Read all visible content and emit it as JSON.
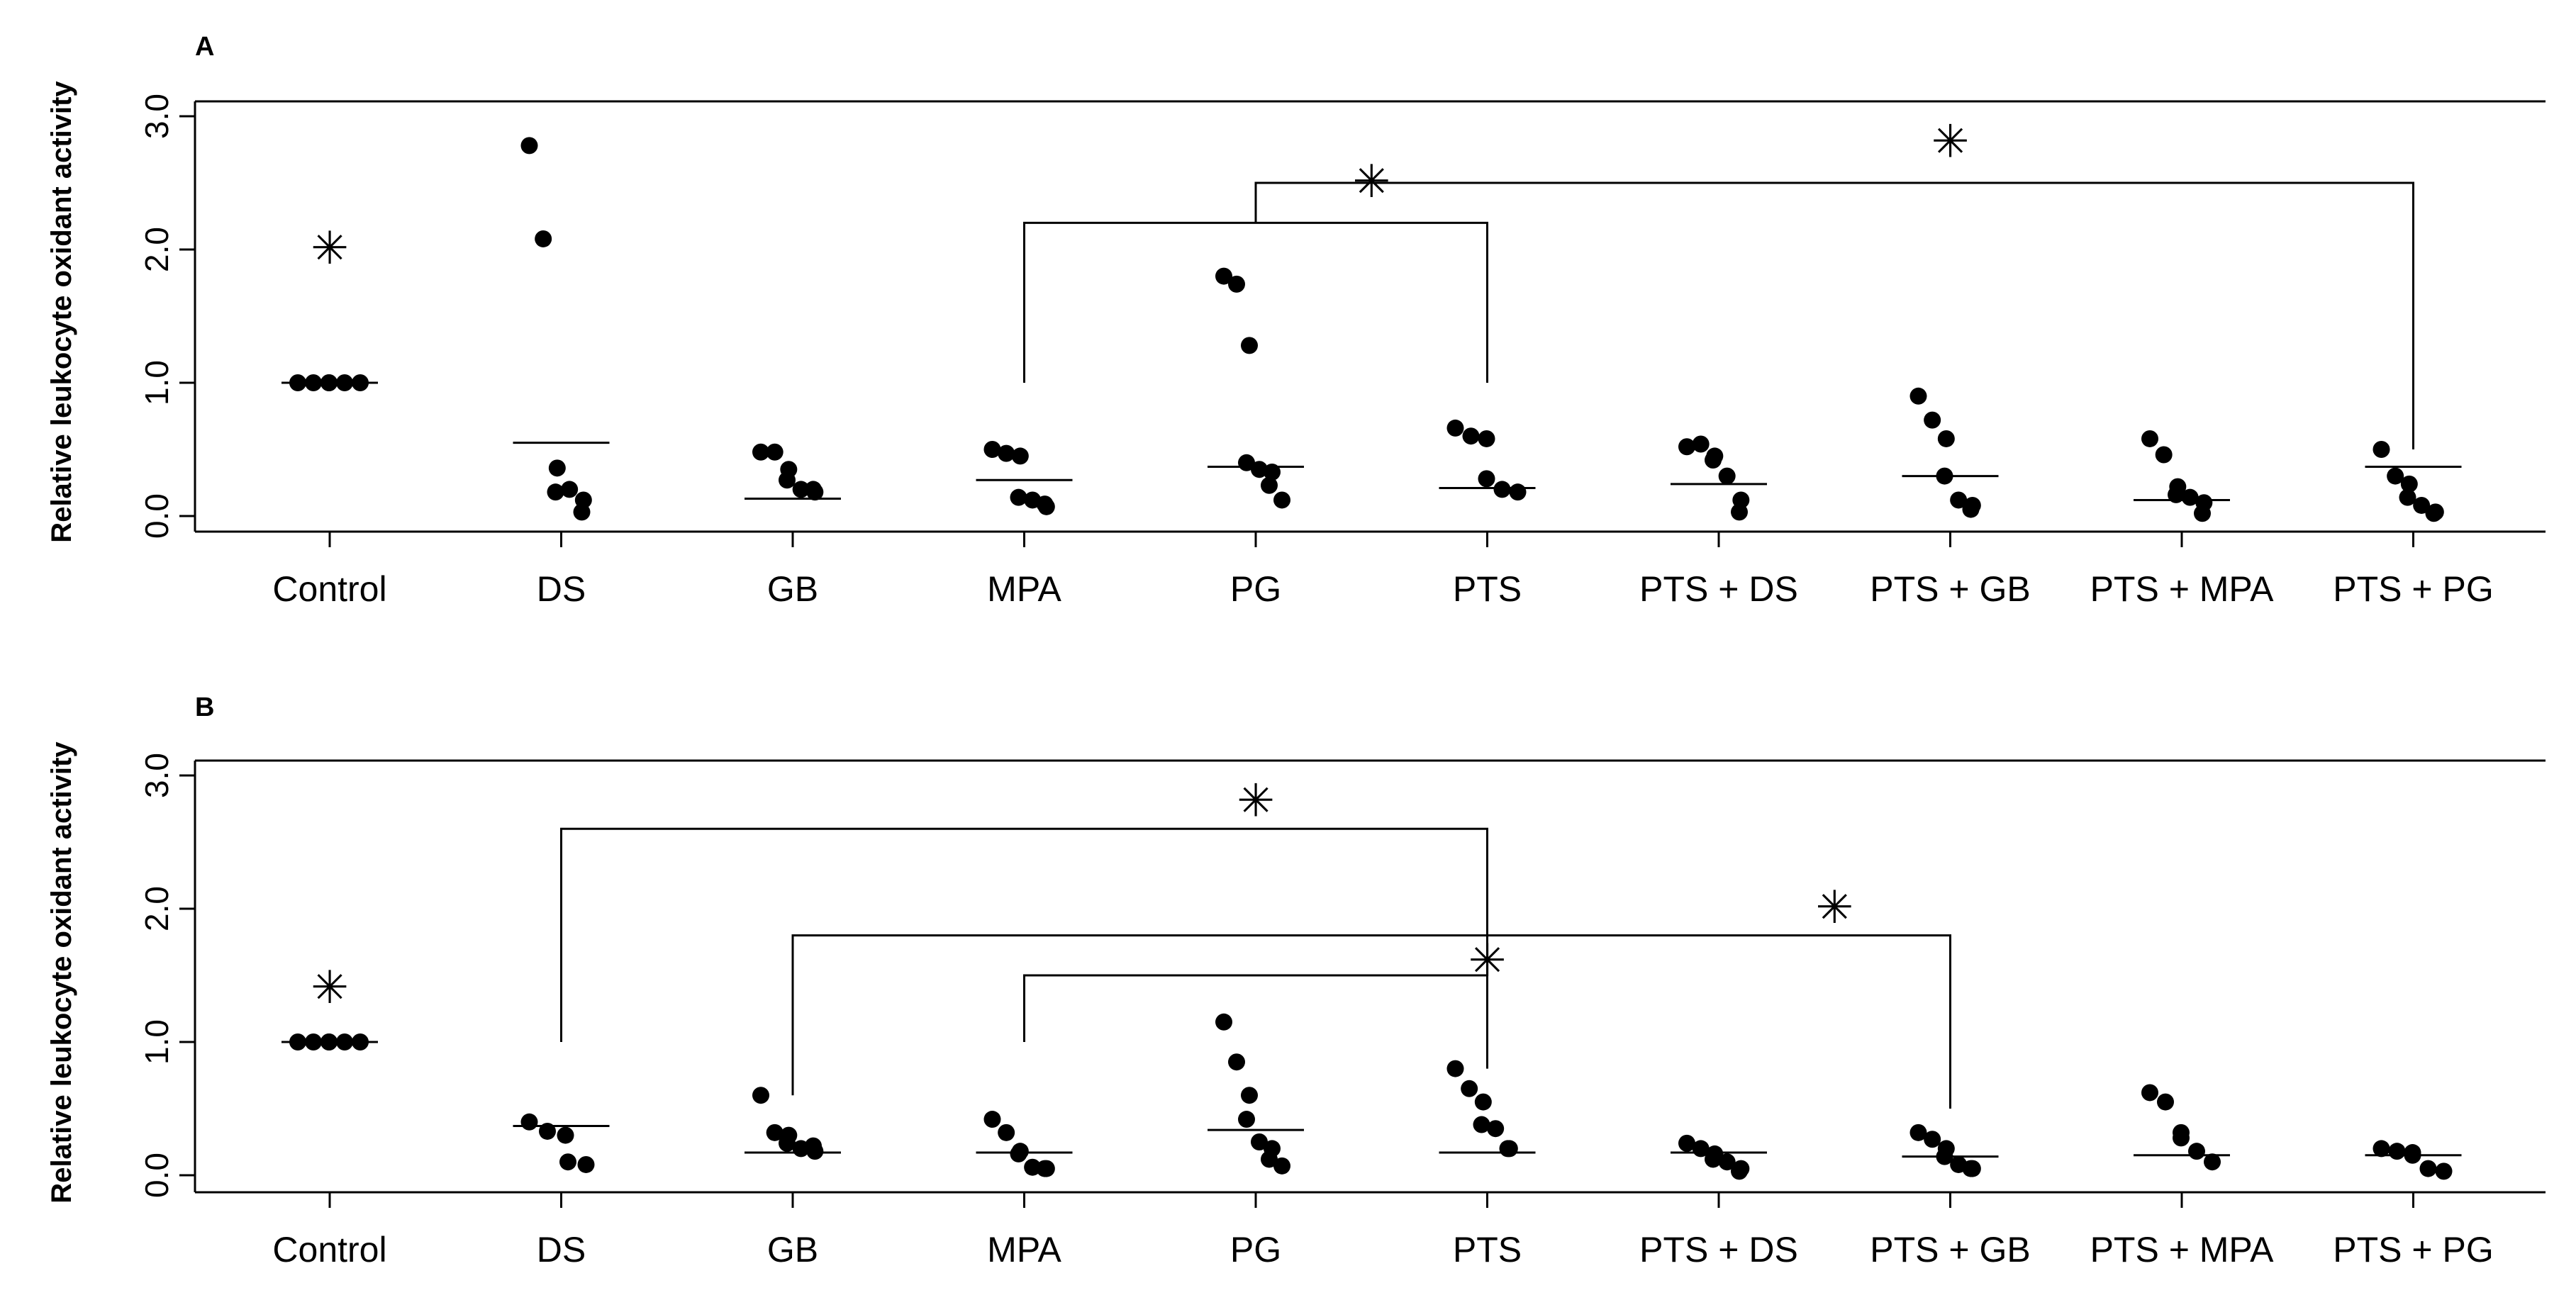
{
  "chart_data": [
    {
      "panel": "A",
      "type": "scatter",
      "ylabel": "Relative leukocyte oxidant activity",
      "ylim": [
        0.0,
        3.0
      ],
      "yticks": [
        "0.0",
        "1.0",
        "2.0",
        "3.0"
      ],
      "categories": [
        "Control",
        "DS",
        "GB",
        "MPA",
        "PG",
        "PTS",
        "PTS + DS",
        "PTS + GB",
        "PTS + MPA",
        "PTS + PG"
      ],
      "points": [
        [
          1.0,
          1.0,
          1.0,
          1.0,
          1.0,
          1.0
        ],
        [
          2.78,
          2.08,
          0.36,
          0.18,
          0.2,
          0.12,
          0.03
        ],
        [
          0.48,
          0.48,
          0.35,
          0.27,
          0.2,
          0.18,
          0.2
        ],
        [
          0.5,
          0.47,
          0.45,
          0.14,
          0.12,
          0.07,
          0.09
        ],
        [
          1.8,
          1.74,
          1.28,
          0.4,
          0.35,
          0.33,
          0.23,
          0.12
        ],
        [
          0.66,
          0.6,
          0.58,
          0.28,
          0.2,
          0.18
        ],
        [
          0.52,
          0.54,
          0.45,
          0.42,
          0.3,
          0.12,
          0.03
        ],
        [
          0.9,
          0.72,
          0.58,
          0.3,
          0.12,
          0.08,
          0.05
        ],
        [
          0.58,
          0.46,
          0.22,
          0.16,
          0.14,
          0.1,
          0.02
        ],
        [
          0.5,
          0.3,
          0.24,
          0.14,
          0.08,
          0.03,
          0.02
        ]
      ],
      "medians": [
        1.0,
        0.55,
        0.13,
        0.27,
        0.37,
        0.21,
        0.24,
        0.3,
        0.12,
        0.37
      ],
      "significance": {
        "stars": [
          {
            "category": "Control",
            "y": 2.0
          },
          {
            "x": 4.5,
            "y": 2.5
          },
          {
            "x": 7.0,
            "y": 2.8
          }
        ],
        "brackets": [
          {
            "from": "MPA",
            "to": "PTS",
            "y": 2.2,
            "from_y": 1.0,
            "to_y": 1.0
          },
          {
            "from": "PG",
            "to": "PTS + PG",
            "y": 2.5,
            "from_y": 2.2,
            "to_y": 0.5
          }
        ]
      }
    },
    {
      "panel": "B",
      "type": "scatter",
      "ylabel": "Relative leukocyte oxidant activity",
      "ylim": [
        0.0,
        3.0
      ],
      "yticks": [
        "0.0",
        "1.0",
        "2.0",
        "3.0"
      ],
      "categories": [
        "Control",
        "DS",
        "GB",
        "MPA",
        "PG",
        "PTS",
        "PTS + DS",
        "PTS + GB",
        "PTS + MPA",
        "PTS + PG"
      ],
      "points": [
        [
          1.0,
          1.0,
          1.0,
          1.0,
          1.0,
          1.0
        ],
        [
          0.4,
          0.33,
          0.3,
          0.1,
          0.08
        ],
        [
          0.6,
          0.32,
          0.3,
          0.24,
          0.2,
          0.18,
          0.22
        ],
        [
          0.42,
          0.32,
          0.18,
          0.16,
          0.06,
          0.05,
          0.05
        ],
        [
          1.15,
          0.85,
          0.6,
          0.42,
          0.25,
          0.2,
          0.12,
          0.07
        ],
        [
          0.8,
          0.65,
          0.55,
          0.38,
          0.35,
          0.2,
          0.2
        ],
        [
          0.24,
          0.2,
          0.16,
          0.12,
          0.1,
          0.05,
          0.03
        ],
        [
          0.32,
          0.27,
          0.2,
          0.14,
          0.08,
          0.05,
          0.05
        ],
        [
          0.62,
          0.55,
          0.32,
          0.28,
          0.18,
          0.1
        ],
        [
          0.2,
          0.18,
          0.17,
          0.15,
          0.05,
          0.03
        ]
      ],
      "medians": [
        1.0,
        0.37,
        0.17,
        0.17,
        0.34,
        0.17,
        0.17,
        0.14,
        0.15,
        0.15
      ],
      "significance": {
        "stars": [
          {
            "category": "Control",
            "y": 1.4
          },
          {
            "x": 4.0,
            "y": 2.8
          },
          {
            "x": 6.5,
            "y": 2.0
          },
          {
            "x": 5.0,
            "y": 1.6
          }
        ],
        "brackets": [
          {
            "from": "DS",
            "to": "PTS",
            "y": 2.6,
            "from_y": 1.0,
            "to_y": 0.8
          },
          {
            "from": "GB",
            "to": "PTS + GB",
            "y": 1.8,
            "from_y": 0.6,
            "to_y": 0.5
          },
          {
            "from": "MPA",
            "to": "PTS",
            "y": 1.5,
            "from_y": 1.0,
            "to_y": 1.5
          }
        ]
      }
    }
  ],
  "colors": {
    "axis": "#000000",
    "point": "#000000",
    "background": "#ffffff"
  },
  "star_glyph": "✳"
}
